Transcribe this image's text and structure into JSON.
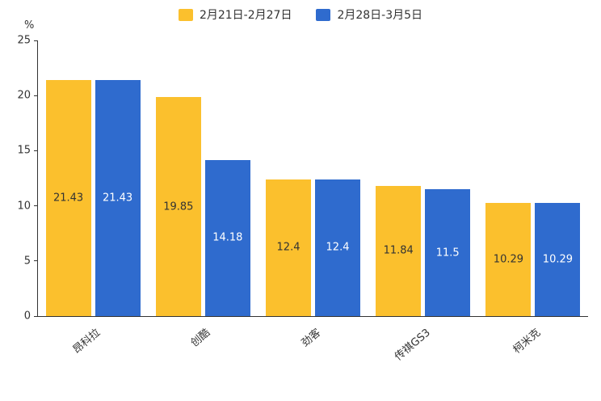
{
  "chart_data": {
    "type": "bar",
    "title": "",
    "y_unit": "%",
    "categories": [
      "昂科拉",
      "创酷",
      "劲客",
      "传祺GS3",
      "柯米克"
    ],
    "series": [
      {
        "name": "2月21日-2月27日",
        "color": "#FBC02D",
        "label_color": "#333333",
        "values": [
          21.43,
          19.85,
          12.4,
          11.84,
          10.29
        ]
      },
      {
        "name": "2月28日-3月5日",
        "color": "#2F6BCE",
        "label_color": "#FFFFFF",
        "values": [
          21.43,
          14.18,
          12.4,
          11.5,
          10.29
        ]
      }
    ],
    "y_ticks": [
      0,
      5,
      10,
      15,
      20,
      25
    ],
    "ylim": [
      0,
      25
    ],
    "grid": "off",
    "legend_position": "top",
    "background": "#FFFFFF",
    "axis_color": "#333333"
  }
}
